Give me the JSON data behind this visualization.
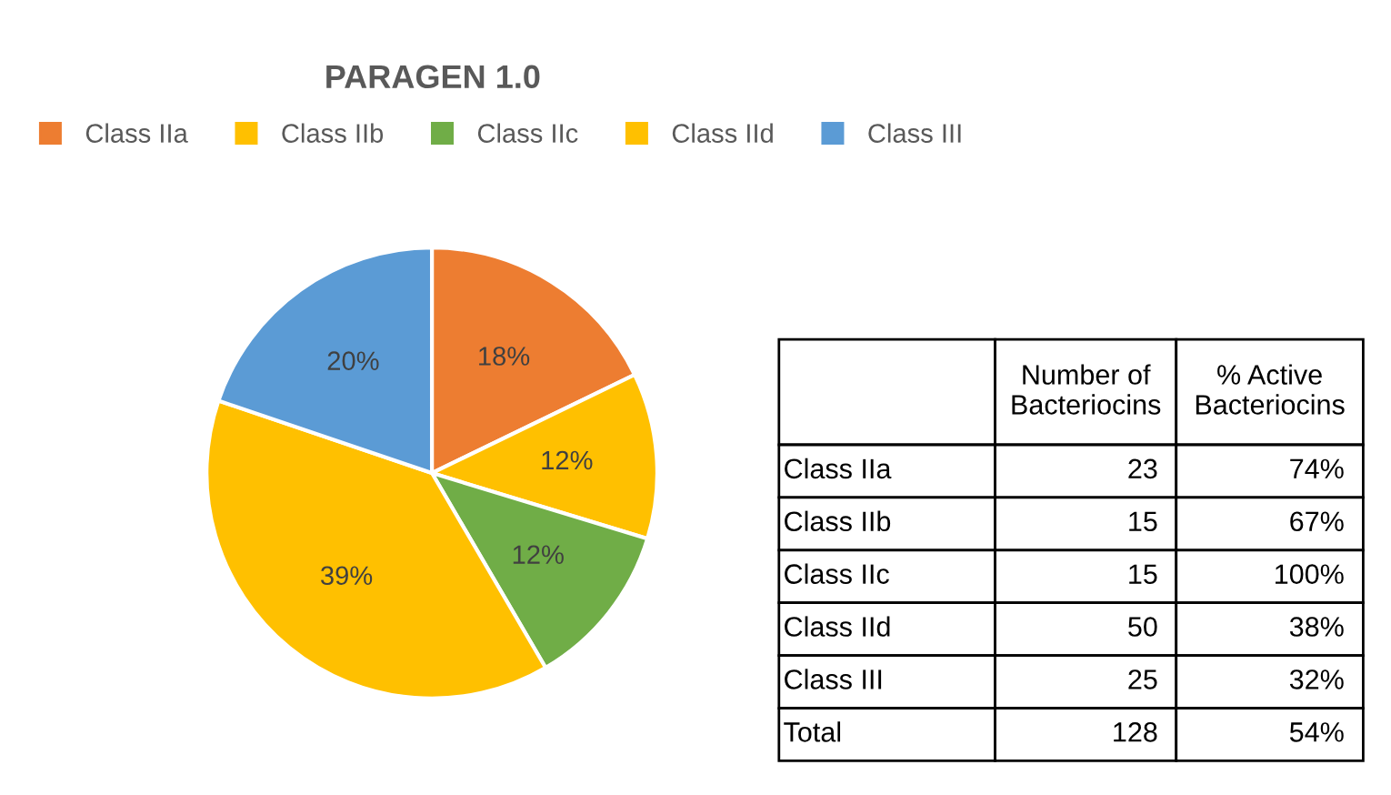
{
  "chart_data": [
    {
      "type": "pie",
      "title": "PARAGEN 1.0",
      "categories": [
        "Class IIa",
        "Class IIb",
        "Class IIc",
        "Class IId",
        "Class III"
      ],
      "values": [
        18,
        12,
        12,
        39,
        20
      ],
      "value_labels": [
        "18%",
        "12%",
        "12%",
        "39%",
        "20%"
      ],
      "colors": [
        "#ed7d31",
        "#ffc000",
        "#70ad47",
        "#ffc000",
        "#5b9bd5"
      ],
      "legend": "top"
    },
    {
      "type": "other",
      "data_labels": true,
      "categories": [
        "Class IIa",
        "Class IIb",
        "Class IIc",
        "Class IId",
        "Class III",
        "Total"
      ],
      "series": [
        {
          "name": "Number of Bacteriocins",
          "values": [
            23,
            15,
            15,
            50,
            25,
            128
          ]
        },
        {
          "name": "% Active Bacteriocins",
          "values": [
            74,
            67,
            100,
            38,
            32,
            54
          ],
          "value_labels": [
            "74%",
            "67%",
            "100%",
            "38%",
            "32%",
            "54%"
          ]
        }
      ]
    }
  ]
}
